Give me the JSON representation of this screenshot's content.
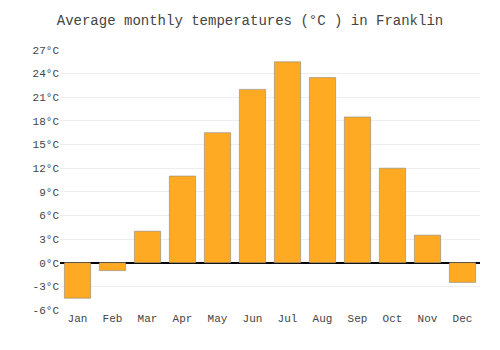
{
  "chart_data": {
    "type": "bar",
    "title": "Average monthly temperatures (°C ) in Franklin",
    "categories": [
      "Jan",
      "Feb",
      "Mar",
      "Apr",
      "May",
      "Jun",
      "Jul",
      "Aug",
      "Sep",
      "Oct",
      "Nov",
      "Dec"
    ],
    "values": [
      -4.5,
      -1.0,
      4.0,
      11.0,
      16.5,
      22.0,
      25.5,
      23.5,
      18.5,
      12.0,
      3.5,
      -2.5
    ],
    "color": "#FFAA22",
    "ylim": [
      -6,
      27
    ],
    "yticks": [
      {
        "value": -6,
        "label": "-6°C"
      },
      {
        "value": -3,
        "label": "-3°C"
      },
      {
        "value": 0,
        "label": "0°C"
      },
      {
        "value": 3,
        "label": "3°C"
      },
      {
        "value": 6,
        "label": "6°C"
      },
      {
        "value": 9,
        "label": "9°C"
      },
      {
        "value": 12,
        "label": "12°C"
      },
      {
        "value": 15,
        "label": "15°C"
      },
      {
        "value": 18,
        "label": "18°C"
      },
      {
        "value": 21,
        "label": "21°C"
      },
      {
        "value": 24,
        "label": "24°C"
      },
      {
        "value": 27,
        "label": "27°C"
      }
    ],
    "grid": true
  }
}
